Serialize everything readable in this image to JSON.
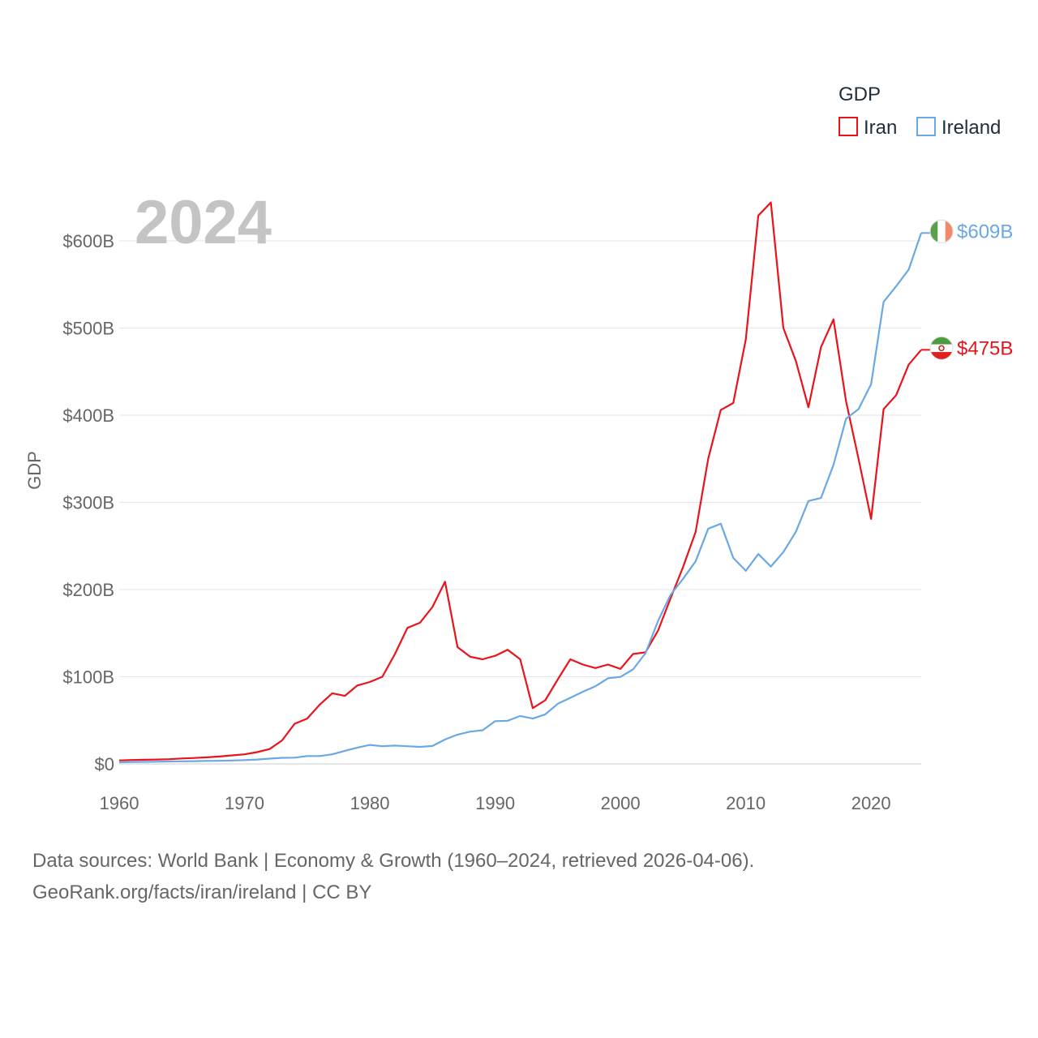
{
  "chart_data": {
    "type": "line",
    "title": "",
    "year_watermark": "2024",
    "xlabel": "",
    "ylabel": "GDP",
    "xlim": [
      1960,
      2024
    ],
    "ylim": [
      0,
      650
    ],
    "x_ticks": [
      1960,
      1970,
      1980,
      1990,
      2000,
      2010,
      2020
    ],
    "y_ticks": [
      0,
      100,
      200,
      300,
      400,
      500,
      600
    ],
    "y_tick_labels": [
      "$0",
      "$100B",
      "$200B",
      "$300B",
      "$400B",
      "$500B",
      "$600B"
    ],
    "legend": {
      "title": "GDP",
      "position": "top-right"
    },
    "x": [
      1960,
      1961,
      1962,
      1963,
      1964,
      1965,
      1966,
      1967,
      1968,
      1969,
      1970,
      1971,
      1972,
      1973,
      1974,
      1975,
      1976,
      1977,
      1978,
      1979,
      1980,
      1981,
      1982,
      1983,
      1984,
      1985,
      1986,
      1987,
      1988,
      1989,
      1990,
      1991,
      1992,
      1993,
      1994,
      1995,
      1996,
      1997,
      1998,
      1999,
      2000,
      2001,
      2002,
      2003,
      2004,
      2005,
      2006,
      2007,
      2008,
      2009,
      2010,
      2011,
      2012,
      2013,
      2014,
      2015,
      2016,
      2017,
      2018,
      2019,
      2020,
      2021,
      2022,
      2023,
      2024
    ],
    "series": [
      {
        "name": "Iran",
        "color": "#e8131b",
        "end_label": "$475B",
        "flag": "iran",
        "values": [
          4,
          4.5,
          4.7,
          5,
          5.4,
          6.2,
          6.8,
          7.5,
          8.5,
          9.8,
          11,
          13.5,
          17,
          27,
          46,
          52,
          68,
          81,
          78,
          90,
          94,
          100,
          126,
          156,
          162,
          180,
          209,
          134,
          123,
          120,
          124,
          131,
          120,
          64,
          73,
          97,
          120,
          114,
          110,
          114,
          109,
          126,
          128,
          153,
          190,
          226,
          266,
          350,
          406,
          414,
          487,
          629,
          644,
          500,
          462,
          409,
          478,
          510,
          416,
          350,
          281,
          407,
          423,
          458,
          475
        ]
      },
      {
        "name": "Ireland",
        "color": "#6aa8e4",
        "end_label": "$609B",
        "flag": "ireland",
        "values": [
          1.9,
          2.1,
          2.3,
          2.5,
          2.8,
          3,
          3.2,
          3.4,
          3.5,
          3.9,
          4.4,
          5,
          6,
          7,
          7.2,
          9,
          9,
          11,
          15,
          18.7,
          21.8,
          20.3,
          21,
          20.3,
          19.5,
          20.6,
          28,
          33.6,
          37,
          38.6,
          49,
          49.5,
          55,
          52,
          56.8,
          69,
          75.8,
          82.8,
          89,
          98.2,
          99.8,
          108.4,
          127,
          164,
          194,
          212.4,
          232.4,
          269.8,
          275.5,
          236.4,
          221.5,
          240.7,
          226.4,
          243,
          266.4,
          301.6,
          305,
          343,
          396,
          407,
          435.5,
          530,
          548,
          567,
          609
        ]
      }
    ]
  },
  "footer": {
    "line1": "Data sources: World Bank | Economy & Growth (1960–2024, retrieved 2026-04-06).",
    "line2": "GeoRank.org/facts/iran/ireland | CC BY"
  }
}
